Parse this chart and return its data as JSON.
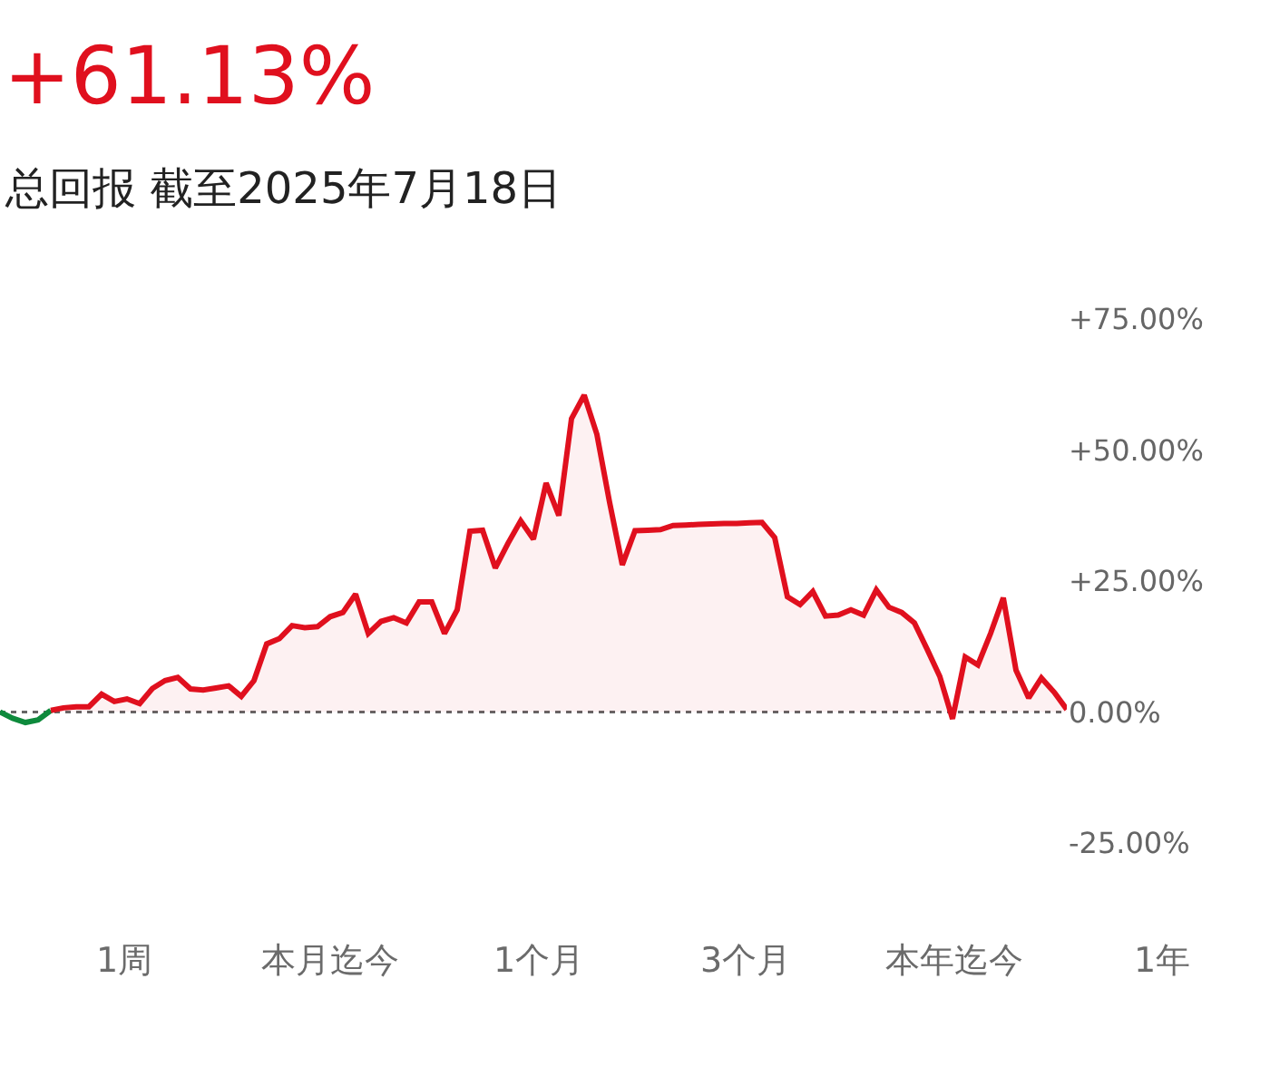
{
  "chart_data": {
    "type": "line",
    "title": "+61.13%",
    "subtitle": "总回报 截至2025年7月18日",
    "categories": [
      null,
      null,
      null,
      null,
      null,
      null,
      null,
      null,
      null,
      null,
      null,
      null,
      null,
      null,
      null,
      null,
      null,
      null,
      null,
      null,
      null,
      null,
      null,
      null,
      null,
      null,
      null,
      null,
      null,
      null,
      null,
      null,
      null,
      null,
      null,
      null,
      null,
      null,
      null,
      null,
      null,
      null,
      null,
      null,
      null,
      null,
      null,
      null,
      null,
      null,
      null,
      null,
      null,
      null,
      null,
      null,
      null,
      null,
      null,
      null,
      null,
      null,
      null,
      null,
      null,
      null,
      null,
      null,
      null,
      null,
      null,
      null,
      null,
      null,
      null,
      null,
      null,
      null,
      null,
      null,
      null,
      null,
      null,
      null,
      null
    ],
    "series": [
      {
        "color": "#0e8a3c",
        "values": [
          0,
          -1.2,
          -2,
          -1.5,
          0.3,
          null,
          null,
          null,
          null,
          null,
          null,
          null,
          null,
          null,
          null,
          null,
          null,
          null,
          null,
          null,
          null,
          null,
          null,
          null,
          null,
          null,
          null,
          null,
          null,
          null,
          null,
          null,
          null,
          null,
          null,
          null,
          null,
          null,
          null,
          null,
          null,
          null,
          null,
          null,
          null,
          null,
          null,
          null,
          null,
          null,
          null,
          null,
          null,
          null,
          null,
          null,
          null,
          null,
          null,
          null,
          null,
          null,
          null,
          null,
          null,
          null,
          null,
          null,
          null,
          null,
          null,
          null,
          null,
          null,
          null,
          null,
          null,
          null,
          null,
          null,
          null,
          null,
          null,
          null,
          null
        ]
      },
      {
        "type": "area",
        "color": "#e0101e",
        "values": [
          null,
          null,
          null,
          null,
          0.3,
          0.8,
          1,
          1,
          3.4,
          2,
          2.5,
          1.6,
          4.5,
          6,
          6.6,
          4.4,
          4.2,
          4.6,
          5,
          3,
          6,
          13,
          14,
          16.5,
          16.1,
          16.3,
          18.2,
          19,
          22.5,
          15,
          17.3,
          18,
          17,
          21,
          21,
          15,
          19.5,
          34.5,
          34.7,
          27.5,
          32.2,
          36.5,
          33,
          43.7,
          37.5,
          56,
          60.5,
          53,
          40,
          28.1,
          34.6,
          34.7,
          34.8,
          35.6,
          35.7,
          35.8,
          35.9,
          36,
          36,
          36.1,
          36.2,
          33.3,
          22,
          20.5,
          23,
          18.3,
          18.5,
          19.5,
          18.5,
          23.3,
          20,
          19,
          17,
          12,
          6.8,
          -1.3,
          10.5,
          9,
          15,
          21.8,
          8,
          2.7,
          6.5,
          3.8,
          0.5
        ]
      }
    ],
    "ylim": [
      -25,
      75
    ],
    "yticks": [
      {
        "value": 75,
        "label": "+75.00%"
      },
      {
        "value": 50,
        "label": "+50.00%"
      },
      {
        "value": 25,
        "label": "+25.00%"
      },
      {
        "value": 0,
        "label": "0.00%"
      },
      {
        "value": -25,
        "label": "-25.00%"
      }
    ],
    "tick_labels": "y",
    "grid": false,
    "legend": false,
    "ref_lines": [
      {
        "axis": "y",
        "value": 0,
        "color": "#666666",
        "line_style": "dotted"
      }
    ],
    "annotations": [
      "1周",
      "本月迄今",
      "1个月",
      "3个月",
      "本年迄今",
      "1年"
    ]
  }
}
